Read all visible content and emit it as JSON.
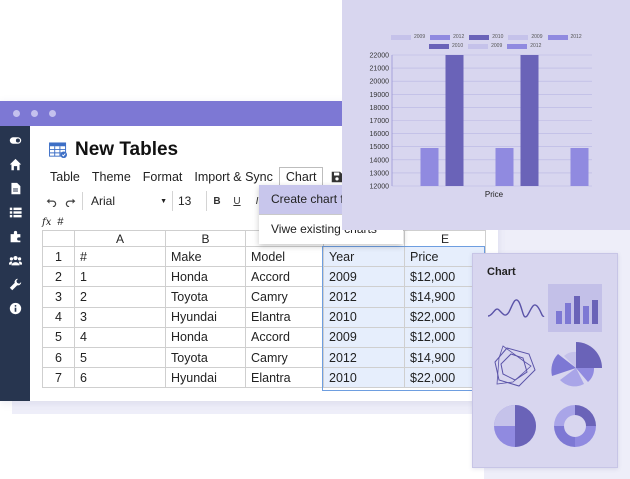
{
  "app": {
    "doc_title": "New Tables",
    "menu": [
      "Table",
      "Theme",
      "Format",
      "Import & Sync",
      "Chart"
    ],
    "toolbar": {
      "font": "Arial",
      "font_size": "13",
      "bold": "B",
      "underline": "U",
      "italic": "I"
    },
    "formula": {
      "fx": "fx",
      "value": "#"
    },
    "sidebar_icons": [
      "toggle-icon",
      "home-icon",
      "document-icon",
      "list-icon",
      "puzzle-icon",
      "users-icon",
      "wrench-icon",
      "info-icon"
    ]
  },
  "dropdown": {
    "items": [
      "Create chart from data",
      "Viwe existing charts"
    ]
  },
  "grid": {
    "columns": [
      "A",
      "B",
      "C",
      "D",
      "E"
    ],
    "rows": [
      {
        "n": "1",
        "a": "#",
        "b": "Make",
        "c": "Model",
        "d": "Year",
        "e": "Price"
      },
      {
        "n": "2",
        "a": "1",
        "b": "Honda",
        "c": "Accord",
        "d": "2009",
        "e": "$12,000"
      },
      {
        "n": "3",
        "a": "2",
        "b": "Toyota",
        "c": "Camry",
        "d": "2012",
        "e": "$14,900"
      },
      {
        "n": "4",
        "a": "3",
        "b": "Hyundai",
        "c": "Elantra",
        "d": "2010",
        "e": "$22,000"
      },
      {
        "n": "5",
        "a": "4",
        "b": "Honda",
        "c": "Accord",
        "d": "2009",
        "e": "$12,000"
      },
      {
        "n": "6",
        "a": "5",
        "b": "Toyota",
        "c": "Camry",
        "d": "2012",
        "e": "$14,900"
      },
      {
        "n": "7",
        "a": "6",
        "b": "Hyundai",
        "c": "Elantra",
        "d": "2010",
        "e": "$22,000"
      }
    ]
  },
  "picker": {
    "title": "Chart",
    "options": [
      "line-chart-icon",
      "bar-chart-icon",
      "radar-chart-icon",
      "polar-area-icon",
      "pie-chart-icon",
      "donut-chart-icon"
    ]
  },
  "colors": {
    "accent": "#7d78d4",
    "sidebar": "#27354f",
    "bar_dark": "#6a63b8",
    "bar_light": "#908ae0",
    "panel": "#d8d6ef"
  },
  "chart_data": {
    "type": "bar",
    "xlabel": "Price",
    "ylabel": "",
    "ylim": [
      12000,
      22000
    ],
    "yticks": [
      "22000",
      "21000",
      "20000",
      "19000",
      "18000",
      "17000",
      "16000",
      "15000",
      "14000",
      "13000",
      "12000"
    ],
    "legend": {
      "placement": "top",
      "entries": [
        {
          "name": "2009",
          "color": "#c5c2ea"
        },
        {
          "name": "2012",
          "color": "#908ae0"
        },
        {
          "name": "2010",
          "color": "#6a63b8"
        },
        {
          "name": "2009",
          "color": "#c5c2ea"
        },
        {
          "name": "2012",
          "color": "#908ae0"
        },
        {
          "name": "2010",
          "color": "#6a63b8"
        },
        {
          "name": "2009",
          "color": "#c5c2ea"
        },
        {
          "name": "2012",
          "color": "#908ae0"
        }
      ]
    },
    "series": [
      {
        "name": "2009",
        "values": [
          12000,
          12000
        ]
      },
      {
        "name": "2012",
        "values": [
          14900,
          14900,
          14900
        ]
      },
      {
        "name": "2010",
        "values": [
          22000,
          22000
        ]
      }
    ],
    "bars": [
      {
        "series": "2009",
        "value": 12000
      },
      {
        "series": "2012",
        "value": 14900
      },
      {
        "series": "2010",
        "value": 22000
      },
      {
        "series": "2009",
        "value": 12000
      },
      {
        "series": "2012",
        "value": 14900
      },
      {
        "series": "2010",
        "value": 22000
      },
      {
        "series": "2009",
        "value": 12000
      },
      {
        "series": "2012",
        "value": 14900
      }
    ]
  }
}
